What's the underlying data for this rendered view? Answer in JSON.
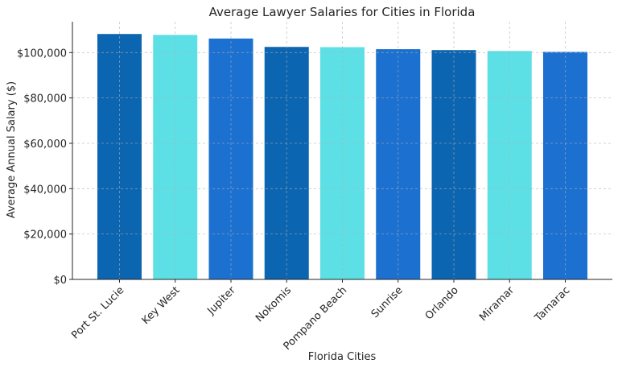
{
  "chart_data": {
    "type": "bar",
    "title": "Average Lawyer Salaries for Cities in Florida",
    "xlabel": "Florida Cities",
    "ylabel": "Average Annual Salary ($)",
    "categories": [
      "Port St. Lucie",
      "Key West",
      "Jupiter",
      "Nokomis",
      "Pompano Beach",
      "Sunrise",
      "Orlando",
      "Miramar",
      "Tamarac"
    ],
    "values": [
      108200,
      107800,
      106200,
      102500,
      102400,
      101500,
      101100,
      100700,
      100300
    ],
    "bar_colors": [
      "#0c65b0",
      "#5ce0e6",
      "#1c70d0",
      "#0c65b0",
      "#5ce0e6",
      "#1c70d0",
      "#0c65b0",
      "#5ce0e6",
      "#1c70d0"
    ],
    "ylim": [
      0,
      113600
    ],
    "yticks": [
      0,
      20000,
      40000,
      60000,
      80000,
      100000
    ],
    "ytick_labels": [
      "$0",
      "$20,000",
      "$40,000",
      "$60,000",
      "$80,000",
      "$100,000"
    ],
    "grid": true,
    "legend": "none"
  }
}
